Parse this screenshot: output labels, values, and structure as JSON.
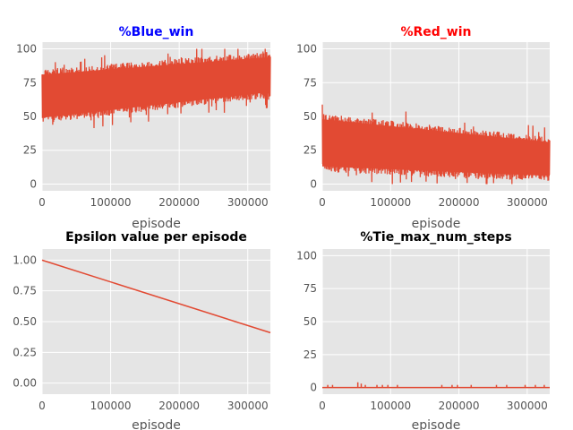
{
  "colors": {
    "panel_bg": "#e5e5e5",
    "grid": "#ffffff",
    "series": "#e24a33",
    "tick_text": "#555555",
    "title_blue": "#0000ff",
    "title_red": "#ff0000",
    "title_black": "#000000"
  },
  "chart_data": [
    {
      "type": "line",
      "title": "%Blue_win",
      "title_color": "#0000ff",
      "xlabel": "episode",
      "ylabel": "",
      "xlim": [
        0,
        333000
      ],
      "ylim": [
        -5,
        105
      ],
      "xticks": [
        0,
        100000,
        200000,
        300000
      ],
      "yticks": [
        0,
        25,
        50,
        75,
        100
      ],
      "grid": true,
      "style": "noisy_band",
      "band": {
        "start_low": 45,
        "end_low": 64,
        "start_high": 85,
        "end_high": 98,
        "spike_min": 40,
        "spike_max": 100
      },
      "series": [
        {
          "values_description_only": false
        }
      ]
    },
    {
      "type": "line",
      "title": "%Red_win",
      "title_color": "#ff0000",
      "xlabel": "episode",
      "ylabel": "",
      "xlim": [
        0,
        333000
      ],
      "ylim": [
        -5,
        105
      ],
      "xticks": [
        0,
        100000,
        200000,
        300000
      ],
      "yticks": [
        0,
        25,
        50,
        75,
        100
      ],
      "grid": true,
      "style": "noisy_band",
      "band": {
        "start_low": 9,
        "end_low": 2,
        "start_high": 52,
        "end_high": 35,
        "spike_min": 0,
        "spike_max": 60
      },
      "series": [
        {
          "values_description_only": false
        }
      ]
    },
    {
      "type": "line",
      "title": "Epsilon value per episode",
      "title_color": "#000000",
      "xlabel": "episode",
      "ylabel": "",
      "xlim": [
        0,
        333000
      ],
      "ylim": [
        -0.09,
        1.09
      ],
      "xticks": [
        0,
        100000,
        200000,
        300000
      ],
      "yticks": [
        0.0,
        0.25,
        0.5,
        0.75,
        1.0
      ],
      "ytick_decimals": 2,
      "grid": true,
      "style": "line",
      "x": [
        0,
        333000
      ],
      "values": [
        1.0,
        0.41
      ]
    },
    {
      "type": "line",
      "title": "%Tie_max_num_steps",
      "title_color": "#000000",
      "xlabel": "episode",
      "ylabel": "",
      "xlim": [
        0,
        333000
      ],
      "ylim": [
        -5,
        105
      ],
      "xticks": [
        0,
        100000,
        200000,
        300000
      ],
      "yticks": [
        0,
        25,
        50,
        75,
        100
      ],
      "grid": true,
      "style": "sparse_spikes",
      "baseline": 0,
      "spikes": [
        [
          8000,
          2
        ],
        [
          15000,
          2
        ],
        [
          52000,
          4
        ],
        [
          57000,
          3
        ],
        [
          63000,
          2
        ],
        [
          80000,
          2
        ],
        [
          88000,
          2
        ],
        [
          96000,
          2
        ],
        [
          110000,
          2
        ],
        [
          175000,
          2
        ],
        [
          190000,
          2
        ],
        [
          198000,
          2
        ],
        [
          218000,
          2
        ],
        [
          255000,
          2
        ],
        [
          270000,
          2
        ],
        [
          297000,
          2
        ],
        [
          312000,
          2
        ],
        [
          325000,
          2
        ]
      ]
    }
  ]
}
